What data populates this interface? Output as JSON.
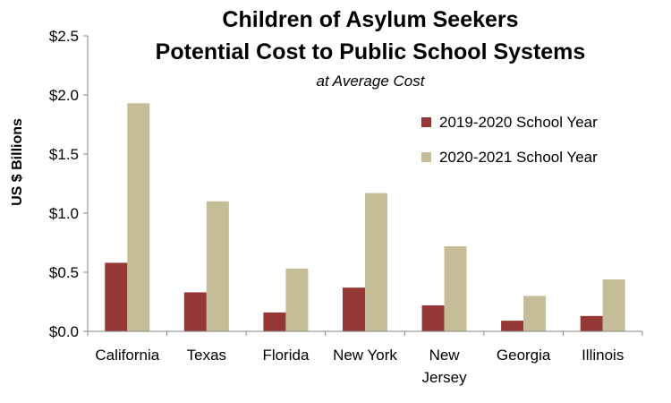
{
  "chart_data": {
    "type": "bar",
    "title_lines": [
      "Children of Asylum Seekers",
      "Potential Cost to Public School Systems"
    ],
    "subtitle": "at Average Cost",
    "ylabel": "US $ Billions",
    "xlabel": "",
    "ylim": [
      0,
      2.5
    ],
    "yticks": [
      0,
      0.5,
      1.0,
      1.5,
      2.0,
      2.5
    ],
    "ytick_labels": [
      "$0.0",
      "$0.5",
      "$1.0",
      "$1.5",
      "$2.0",
      "$2.5"
    ],
    "categories": [
      "California",
      "Texas",
      "Florida",
      "New York",
      "New Jersey",
      "Georgia",
      "Illinois"
    ],
    "category_lines": [
      [
        "California"
      ],
      [
        "Texas"
      ],
      [
        "Florida"
      ],
      [
        "New York"
      ],
      [
        "New",
        "Jersey"
      ],
      [
        "Georgia"
      ],
      [
        "Illinois"
      ]
    ],
    "series": [
      {
        "name": "2019-2020 School Year",
        "color": "#953735",
        "values": [
          0.58,
          0.33,
          0.16,
          0.37,
          0.22,
          0.09,
          0.13
        ]
      },
      {
        "name": "2020-2021 School Year",
        "color": "#C4BD97",
        "values": [
          1.93,
          1.1,
          0.53,
          1.17,
          0.72,
          0.3,
          0.44
        ]
      }
    ],
    "grid": false,
    "legend_position": "top-right"
  }
}
